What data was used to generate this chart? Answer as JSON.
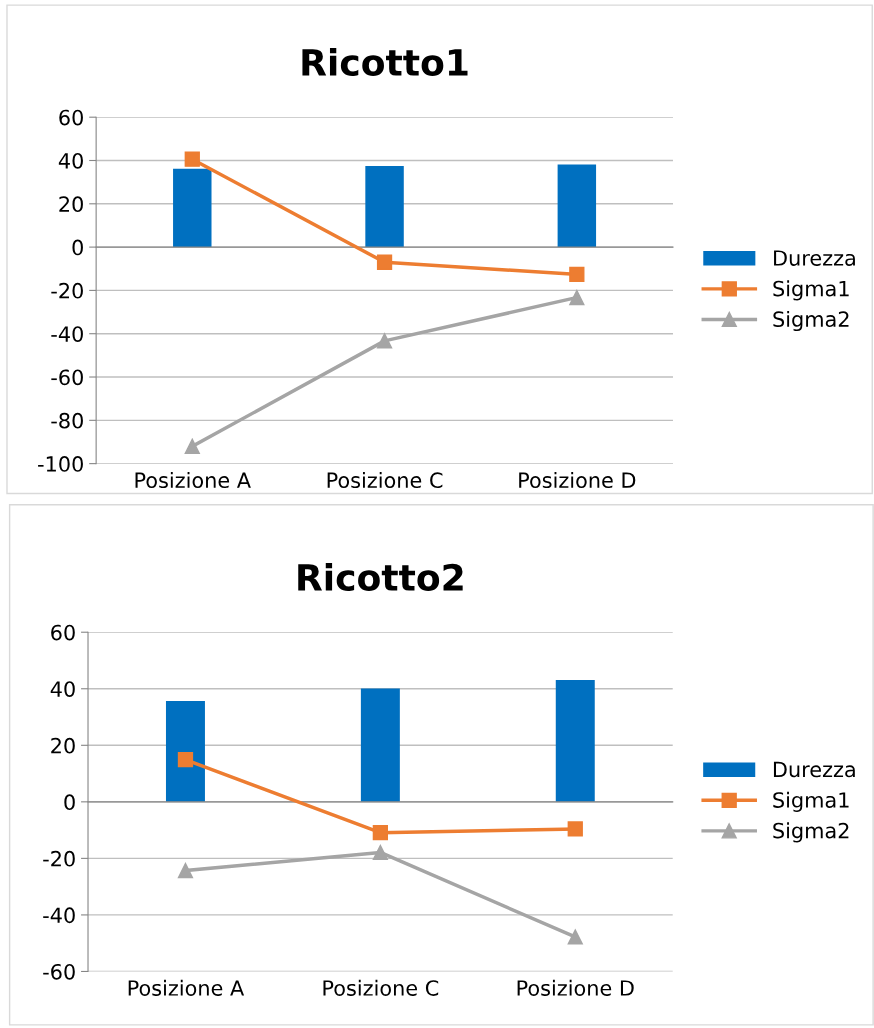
{
  "chart_data": [
    {
      "type": "bar",
      "title": "Ricotto1",
      "categories": [
        "Posizione A",
        "Posizione C",
        "Posizione D"
      ],
      "ylim": [
        -100,
        60
      ],
      "yticks": [
        -100,
        -80,
        -60,
        -40,
        -20,
        0,
        20,
        40,
        60
      ],
      "grid": "y",
      "legend": "right",
      "series": [
        {
          "name": "Durezza",
          "color": "#0070c0",
          "values": [
            36.2,
            37.5,
            38.1
          ]
        },
        {
          "name": "Sigma1",
          "type": "line",
          "color": "#ed7d31",
          "marker": "square",
          "values": [
            40.6,
            -7,
            -12.6
          ]
        },
        {
          "name": "Sigma2",
          "type": "line",
          "color": "#a5a5a5",
          "marker": "triangle",
          "values": [
            -92,
            -43.3,
            -23.3
          ]
        }
      ]
    },
    {
      "type": "bar",
      "title": "Ricotto2",
      "categories": [
        "Posizione A",
        "Posizione C",
        "Posizione D"
      ],
      "ylim": [
        -60,
        60
      ],
      "yticks": [
        -60,
        -40,
        -20,
        0,
        20,
        40,
        60
      ],
      "grid": "y",
      "legend": "right",
      "series": [
        {
          "name": "Durezza",
          "color": "#0070c0",
          "values": [
            35.7,
            40.1,
            43.1
          ]
        },
        {
          "name": "Sigma1",
          "type": "line",
          "color": "#ed7d31",
          "marker": "square",
          "values": [
            14.9,
            -10.9,
            -9.6
          ]
        },
        {
          "name": "Sigma2",
          "type": "line",
          "color": "#a5a5a5",
          "marker": "triangle",
          "values": [
            -24.3,
            -17.9,
            -47.8
          ]
        }
      ]
    }
  ]
}
